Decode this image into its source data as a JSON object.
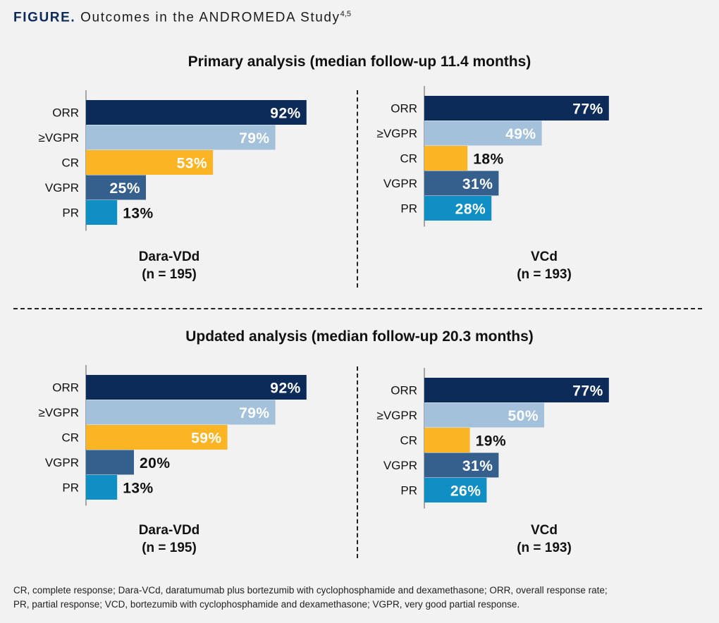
{
  "figure": {
    "lead": "FIGURE.",
    "title": "Outcomes in the ANDROMEDA Study",
    "superscript": "4,5"
  },
  "categories": [
    "ORR",
    "≥VGPR",
    "CR",
    "VGPR",
    "PR"
  ],
  "category_colors": [
    "#0d2b59",
    "#a3c1da",
    "#fbb524",
    "#355f8d",
    "#0f8fc4"
  ],
  "label_colors": [
    "#ffffff",
    "#ffffff",
    "#ffffff",
    "#ffffff",
    "#ffffff"
  ],
  "chart_data": [
    {
      "type": "bar",
      "orientation": "horizontal",
      "section": "Primary analysis (median follow-up 11.4 months)",
      "group": "Dara-VDd",
      "n": "(n = 195)",
      "categories": [
        "ORR",
        "≥VGPR",
        "CR",
        "VGPR",
        "PR"
      ],
      "values": [
        92,
        79,
        53,
        25,
        13
      ],
      "value_labels": [
        "92%",
        "79%",
        "53%",
        "25%",
        "13%"
      ],
      "xlim": [
        0,
        100
      ]
    },
    {
      "type": "bar",
      "orientation": "horizontal",
      "section": "Primary analysis (median follow-up 11.4 months)",
      "group": "VCd",
      "n": "(n = 193)",
      "categories": [
        "ORR",
        "≥VGPR",
        "CR",
        "VGPR",
        "PR"
      ],
      "values": [
        77,
        49,
        18,
        31,
        28
      ],
      "value_labels": [
        "77%",
        "49%",
        "18%",
        "31%",
        "28%"
      ],
      "xlim": [
        0,
        100
      ]
    },
    {
      "type": "bar",
      "orientation": "horizontal",
      "section": "Updated analysis (median follow-up 20.3 months)",
      "group": "Dara-VDd",
      "n": "(n = 195)",
      "categories": [
        "ORR",
        "≥VGPR",
        "CR",
        "VGPR",
        "PR"
      ],
      "values": [
        92,
        79,
        59,
        20,
        13
      ],
      "value_labels": [
        "92%",
        "79%",
        "59%",
        "20%",
        "13%"
      ],
      "xlim": [
        0,
        100
      ]
    },
    {
      "type": "bar",
      "orientation": "horizontal",
      "section": "Updated analysis (median follow-up 20.3 months)",
      "group": "VCd",
      "n": "(n = 193)",
      "categories": [
        "ORR",
        "≥VGPR",
        "CR",
        "VGPR",
        "PR"
      ],
      "values": [
        77,
        50,
        19,
        31,
        26
      ],
      "value_labels": [
        "77%",
        "50%",
        "19%",
        "31%",
        "26%"
      ],
      "xlim": [
        0,
        100
      ]
    }
  ],
  "sections": {
    "primary": "Primary analysis (median follow-up 11.4 months)",
    "updated": "Updated analysis (median follow-up 20.3 months)"
  },
  "groups": {
    "dara_name": "Dara-VDd",
    "dara_n": "(n = 195)",
    "vcd_name": "VCd",
    "vcd_n": "(n = 193)"
  },
  "footnote": {
    "line1": "CR, complete response; Dara-VCd, daratumumab plus bortezumib with cyclophosphamide and dexamethasone; ORR, overall response rate;",
    "line2": "PR, partial response; VCD, bortezumib with cyclophosphamide and dexamethasone; VGPR, very good partial response."
  }
}
